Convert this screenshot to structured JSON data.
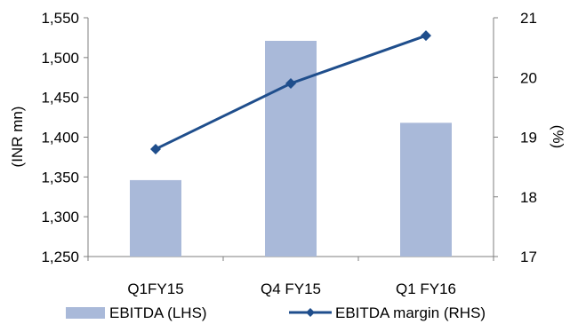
{
  "chart_data": {
    "type": "bar+line",
    "categories": [
      "Q1FY15",
      "Q4 FY15",
      "Q1 FY16"
    ],
    "series": [
      {
        "name": "EBITDA (LHS)",
        "type": "bar",
        "axis": "left",
        "values": [
          1346,
          1521,
          1418
        ],
        "color": "#a9b9d9"
      },
      {
        "name": "EBITDA margin (RHS)",
        "type": "line",
        "axis": "right",
        "values": [
          18.8,
          19.9,
          20.7
        ],
        "color": "#1f4e8c",
        "marker": "diamond"
      }
    ],
    "ylabel_left": "(INR mn)",
    "ylabel_right": "(%)",
    "ylim_left": [
      1250,
      1550
    ],
    "ylim_right": [
      17,
      21
    ],
    "yticks_left": [
      "1,250",
      "1,300",
      "1,350",
      "1,400",
      "1,450",
      "1,500",
      "1,550"
    ],
    "yticks_right": [
      "17",
      "18",
      "19",
      "20",
      "21"
    ],
    "grid": false,
    "legend_position": "bottom"
  }
}
